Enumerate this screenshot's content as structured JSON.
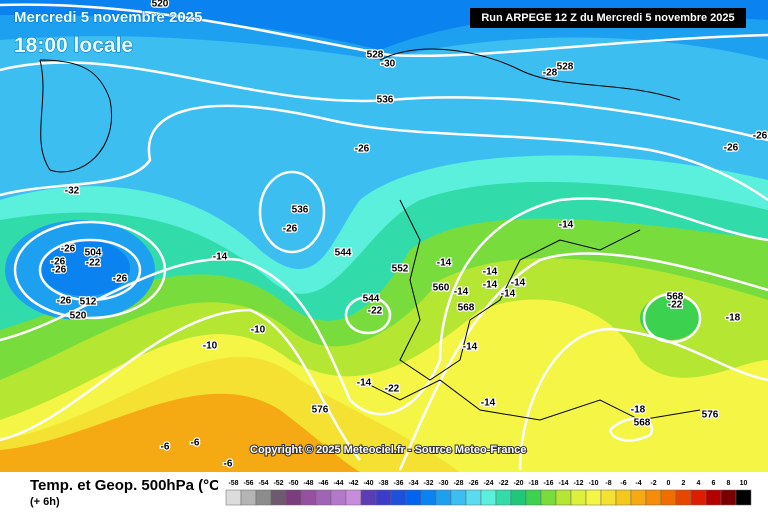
{
  "header": {
    "date": "Mercredi 5 novembre 2025",
    "time": "18:00 locale",
    "run": "Run ARPEGE 12 Z du Mercredi 5 novembre 2025"
  },
  "copyright": "Copyright © 2025 Meteociel.fr - Source Meteo-France",
  "footer": {
    "title": "Temp. et Geop. 500hPa (°C)",
    "lead": "(+ 6h)"
  },
  "legend": {
    "labels": [
      "-58",
      "-56",
      "-54",
      "-52",
      "-50",
      "-48",
      "-46",
      "-44",
      "-42",
      "-40",
      "-38",
      "-36",
      "-34",
      "-32",
      "-30",
      "-28",
      "-26",
      "-24",
      "-22",
      "-20",
      "-18",
      "-16",
      "-14",
      "-12",
      "-10",
      "-8",
      "-6",
      "-4",
      "-2",
      "0",
      "2",
      "4",
      "6",
      "8",
      "10"
    ],
    "colors": [
      "#dcdcdc",
      "#b4b4b4",
      "#8c8c8c",
      "#6e5a6e",
      "#7d3c7d",
      "#9650a0",
      "#a064b4",
      "#b478c8",
      "#c88cdc",
      "#5a3cb4",
      "#3c3cc8",
      "#1e50dc",
      "#0064f0",
      "#0a82f0",
      "#1ea0f0",
      "#3cbef0",
      "#5adcf0",
      "#5af0dc",
      "#32dcaa",
      "#1ec878",
      "#3cd250",
      "#78dc3c",
      "#b4e632",
      "#dcf03c",
      "#f5f546",
      "#f5e132",
      "#f5c81e",
      "#f5aa14",
      "#f58c0a",
      "#f06e00",
      "#e64600",
      "#dc1e00",
      "#b40000",
      "#780000",
      "#000000"
    ]
  },
  "map_labels": [
    "520",
    "528",
    "-30",
    "528",
    "-28",
    "536",
    "-26",
    "-32",
    "536",
    "-26",
    "504",
    "-22",
    "-26",
    "-26",
    "-26",
    "-26",
    "-26",
    "512",
    "520",
    "-14",
    "-14",
    "544",
    "552",
    "-14",
    "-14",
    "-14",
    "-14",
    "-14",
    "560",
    "-14",
    "568",
    "544",
    "-22",
    "-10",
    "-10",
    "-14",
    "568",
    "-22",
    "-18",
    "-14",
    "-22",
    "-14",
    "576",
    "-18",
    "568",
    "576",
    "-6",
    "-6",
    "-6",
    "-26",
    "-26"
  ]
}
